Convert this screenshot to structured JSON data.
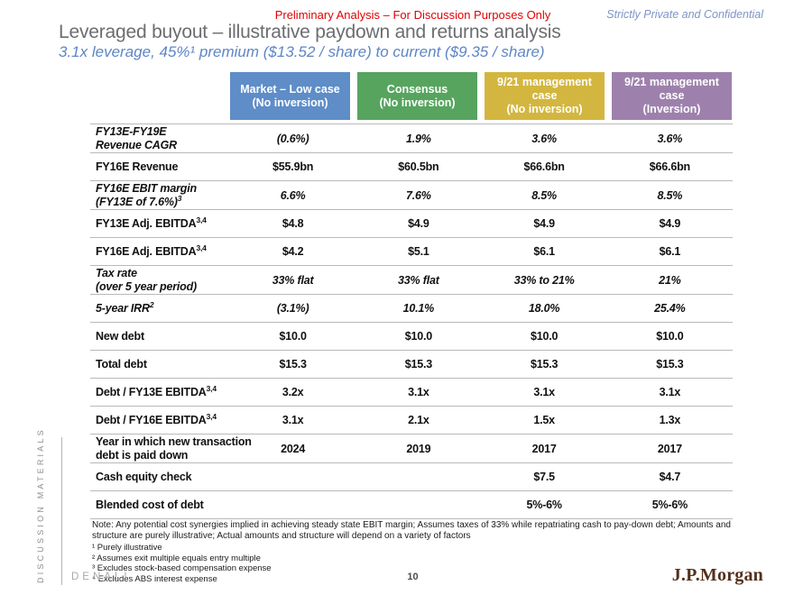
{
  "slide": {
    "classification": "Preliminary Analysis – For Discussion Purposes Only",
    "confidentiality": "Strictly Private and Confidential",
    "title": "Leveraged buyout – illustrative paydown and returns analysis",
    "subtitle": "3.1x leverage, 45%¹ premium ($13.52 / share) to current ($9.35 / share)"
  },
  "table": {
    "columns": [
      {
        "title": "Market – Low case",
        "sub": "(No inversion)",
        "color": "#5e8dc8"
      },
      {
        "title": "Consensus",
        "sub": "(No inversion)",
        "color": "#57a45f"
      },
      {
        "title": "9/21 management case",
        "sub": "(No inversion)",
        "color": "#d3b63f"
      },
      {
        "title": "9/21 management case",
        "sub": "(Inversion)",
        "color": "#9d81ac"
      }
    ],
    "rows": [
      {
        "label_lines": [
          "FY13E-FY19E",
          "Revenue CAGR"
        ],
        "sup": "",
        "italic": true,
        "values": [
          "(0.6%)",
          "1.9%",
          "3.6%",
          "3.6%"
        ]
      },
      {
        "label_lines": [
          "FY16E Revenue"
        ],
        "sup": "",
        "italic": false,
        "values": [
          "$55.9bn",
          "$60.5bn",
          "$66.6bn",
          "$66.6bn"
        ]
      },
      {
        "label_lines": [
          "FY16E EBIT margin",
          "(FY13E of 7.6%)"
        ],
        "sup": "3",
        "italic": true,
        "values": [
          "6.6%",
          "7.6%",
          "8.5%",
          "8.5%"
        ]
      },
      {
        "label_lines": [
          "FY13E Adj. EBITDA"
        ],
        "sup": "3,4",
        "italic": false,
        "values": [
          "$4.8",
          "$4.9",
          "$4.9",
          "$4.9"
        ]
      },
      {
        "label_lines": [
          "FY16E Adj. EBITDA"
        ],
        "sup": "3,4",
        "italic": false,
        "values": [
          "$4.2",
          "$5.1",
          "$6.1",
          "$6.1"
        ]
      },
      {
        "label_lines": [
          "Tax rate",
          "(over 5 year period)"
        ],
        "sup": "",
        "italic": true,
        "values": [
          "33% flat",
          "33% flat",
          "33% to 21%",
          "21%"
        ]
      },
      {
        "label_lines": [
          "5-year IRR"
        ],
        "sup": "2",
        "italic": true,
        "values": [
          "(3.1%)",
          "10.1%",
          "18.0%",
          "25.4%"
        ]
      },
      {
        "label_lines": [
          "New debt"
        ],
        "sup": "",
        "italic": false,
        "values": [
          "$10.0",
          "$10.0",
          "$10.0",
          "$10.0"
        ]
      },
      {
        "label_lines": [
          "Total debt"
        ],
        "sup": "",
        "italic": false,
        "values": [
          "$15.3",
          "$15.3",
          "$15.3",
          "$15.3"
        ]
      },
      {
        "label_lines": [
          "Debt / FY13E EBITDA"
        ],
        "sup": "3,4",
        "italic": false,
        "values": [
          "3.2x",
          "3.1x",
          "3.1x",
          "3.1x"
        ]
      },
      {
        "label_lines": [
          "Debt / FY16E EBITDA"
        ],
        "sup": "3,4",
        "italic": false,
        "values": [
          "3.1x",
          "2.1x",
          "1.5x",
          "1.3x"
        ]
      },
      {
        "label_lines": [
          "Year in which new transaction",
          "debt is paid down"
        ],
        "sup": "",
        "italic": false,
        "values": [
          "2024",
          "2019",
          "2017",
          "2017"
        ]
      },
      {
        "label_lines": [
          "Cash equity check"
        ],
        "sup": "",
        "italic": false,
        "values": [
          "",
          "",
          "$7.5",
          "$4.7"
        ]
      },
      {
        "label_lines": [
          "Blended cost of debt"
        ],
        "sup": "",
        "italic": false,
        "values": [
          "",
          "",
          "5%-6%",
          "5%-6%"
        ]
      }
    ]
  },
  "notes": {
    "note": "Note: Any potential cost synergies implied in achieving steady state EBIT margin; Assumes taxes of 33% while repatriating cash to pay-down debt; Amounts and structure are purely illustrative; Actual amounts and structure will depend on a variety of factors",
    "footnotes": [
      "¹ Purely illustrative",
      "² Assumes exit multiple equals entry multiple",
      "³ Excludes stock-based compensation expense",
      "⁴ Excludes ABS interest expense"
    ]
  },
  "footer": {
    "sidebar_label": "DISCUSSION MATERIALS",
    "client_name": "DENALI",
    "page_number": "10",
    "logo_text": "J.P.Morgan"
  },
  "colors": {
    "classification_red": "#e20000",
    "subtitle_blue": "#5d86c5",
    "title_gray": "#6c6d70",
    "logo_brown": "#54301c",
    "case_blue": "#5e8dc8",
    "case_green": "#57a45f",
    "case_gold": "#d3b63f",
    "case_purple": "#9d81ac"
  }
}
